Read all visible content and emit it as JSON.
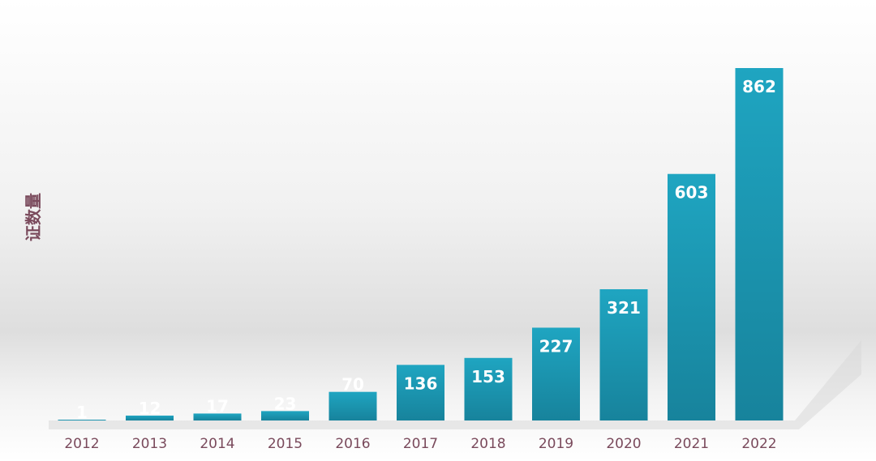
{
  "chart_data": {
    "type": "bar",
    "ylabel": "证数量",
    "categories": [
      "2012",
      "2013",
      "2014",
      "2015",
      "2016",
      "2017",
      "2018",
      "2019",
      "2020",
      "2021",
      "2022"
    ],
    "values": [
      1,
      12,
      17,
      23,
      70,
      136,
      153,
      227,
      321,
      603,
      862
    ],
    "ylim": [
      0,
      862
    ],
    "grid": false,
    "legend": "none",
    "data_labels": true,
    "colors": {
      "bar_top": "#1fa5c1",
      "bar_bottom": "#17839c",
      "label": "#ffffff",
      "axis_text": "#7a4a5c"
    }
  }
}
